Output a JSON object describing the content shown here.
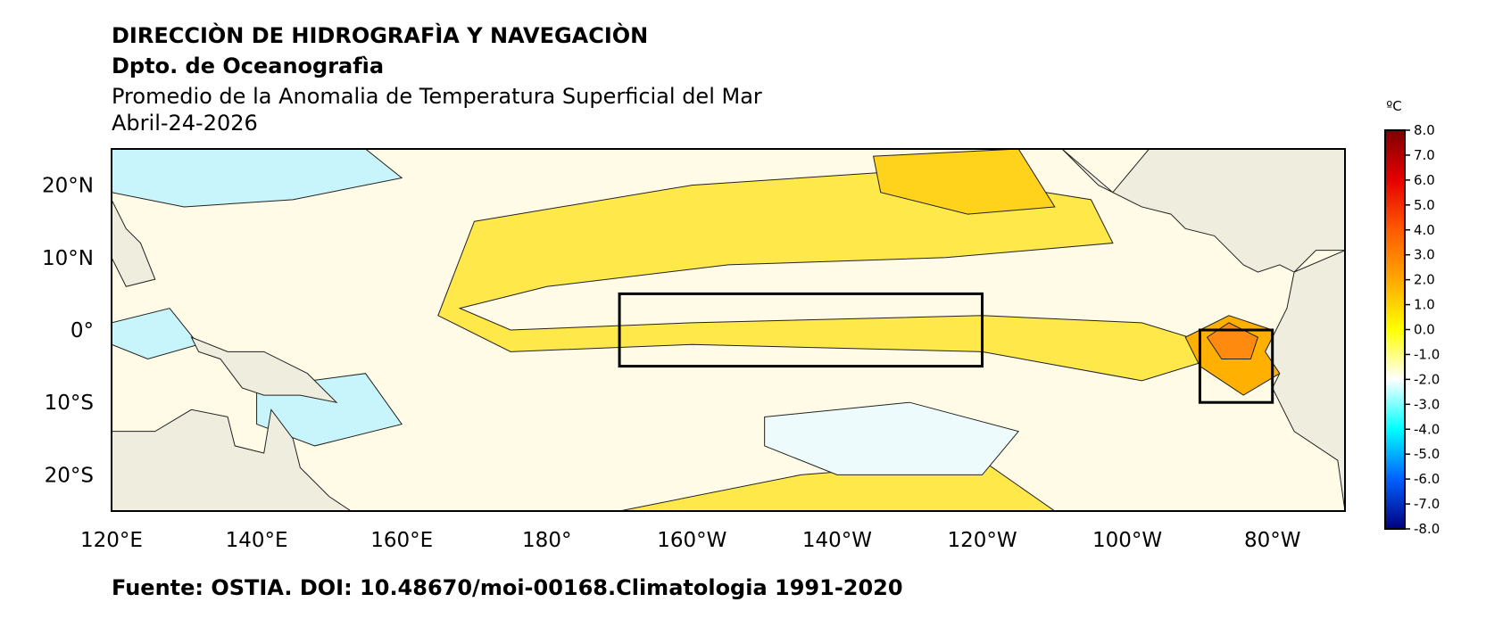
{
  "header": {
    "title": "DIRECCIÒN DE HIDROGRAFÌA Y NAVEGACIÒN",
    "department": "Dpto. de Oceanografìa",
    "subtitle": "Promedio de la Anomalia de Temperatura Superficial del Mar",
    "date": "Abril-24-2026"
  },
  "footer": {
    "source": "Fuente: OSTIA. DOI: 10.48670/moi-00168.Climatologia 1991-2020"
  },
  "map": {
    "lon_range_east": [
      120,
      290
    ],
    "lat_range": [
      -25,
      25
    ],
    "lon_ticks": [
      {
        "lon": 120,
        "label": "120°E"
      },
      {
        "lon": 140,
        "label": "140°E"
      },
      {
        "lon": 160,
        "label": "160°E"
      },
      {
        "lon": 180,
        "label": "180°"
      },
      {
        "lon": 200,
        "label": "160°W"
      },
      {
        "lon": 220,
        "label": "140°W"
      },
      {
        "lon": 240,
        "label": "120°W"
      },
      {
        "lon": 260,
        "label": "100°W"
      },
      {
        "lon": 280,
        "label": "80°W"
      }
    ],
    "lat_ticks": [
      {
        "lat": 20,
        "label": "20°N"
      },
      {
        "lat": 10,
        "label": "10°N"
      },
      {
        "lat": 0,
        "label": "0°"
      },
      {
        "lat": -10,
        "label": "10°S"
      },
      {
        "lat": -20,
        "label": "20°S"
      }
    ],
    "regions": [
      {
        "lon": [
          190,
          240
        ],
        "lat": [
          -5,
          5
        ]
      },
      {
        "lon": [
          270,
          280
        ],
        "lat": [
          -10,
          0
        ]
      }
    ],
    "colors": {
      "land": "#efedde",
      "ocean_neutral": "#fffbe6",
      "warm": "#ffe94a",
      "cool": "#c8f4fb",
      "hot": "#ff8a10"
    }
  },
  "colorbar": {
    "unit": "ºC",
    "ticks": [
      "8.0",
      "7.0",
      "6.0",
      "5.0",
      "4.0",
      "3.0",
      "2.0",
      "1.0",
      "0.0",
      "-1.0",
      "-2.0",
      "-3.0",
      "-4.0",
      "-5.0",
      "-6.0",
      "-7.0",
      "-8.0"
    ],
    "stops": [
      "#7f0000",
      "#e60000",
      "#ff5a00",
      "#ffa800",
      "#ffff00",
      "#ffffff",
      "#00ffff",
      "#0060ff",
      "#00007f"
    ]
  }
}
